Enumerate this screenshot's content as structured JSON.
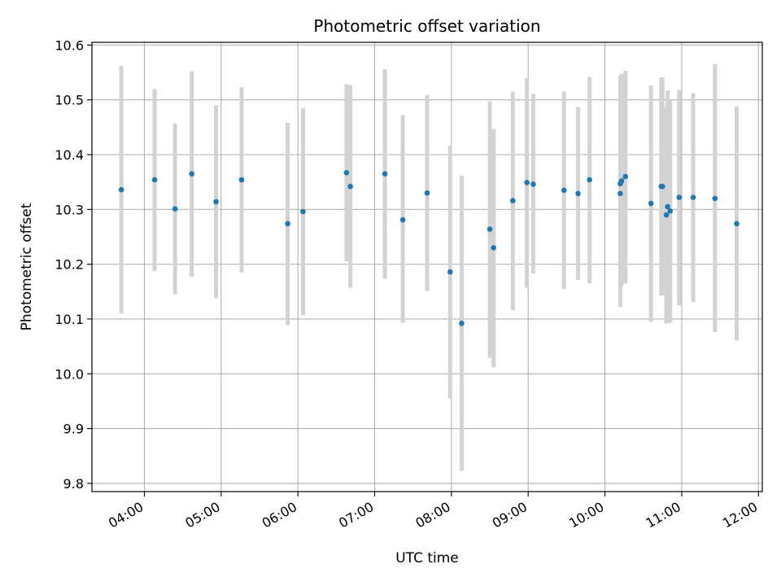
{
  "chart_data": {
    "type": "scatter",
    "title": "Photometric offset variation",
    "xlabel": "UTC time",
    "ylabel": "Photometric offset",
    "x_unit": "hours (UTC)",
    "xlim": [
      "03:19",
      "12:03"
    ],
    "ylim": [
      9.785,
      10.605
    ],
    "grid": true,
    "x_ticks": [
      "04:00",
      "05:00",
      "06:00",
      "07:00",
      "08:00",
      "09:00",
      "10:00",
      "11:00",
      "12:00"
    ],
    "y_ticks": [
      "9.8",
      "9.9",
      "10.0",
      "10.1",
      "10.2",
      "10.3",
      "10.4",
      "10.5",
      "10.6"
    ],
    "colors": {
      "point": "#1f77b4",
      "errorbar": "#d3d3d3",
      "grid": "#b0b0b0"
    },
    "series": [
      {
        "points": [
          {
            "x": "03:42",
            "y": 10.336,
            "ylo": 10.11,
            "yhi": 10.562
          },
          {
            "x": "04:08",
            "y": 10.354,
            "ylo": 10.187,
            "yhi": 10.52
          },
          {
            "x": "04:24",
            "y": 10.301,
            "ylo": 10.145,
            "yhi": 10.457
          },
          {
            "x": "04:37",
            "y": 10.365,
            "ylo": 10.177,
            "yhi": 10.552
          },
          {
            "x": "04:56",
            "y": 10.314,
            "ylo": 10.138,
            "yhi": 10.49
          },
          {
            "x": "05:16",
            "y": 10.354,
            "ylo": 10.185,
            "yhi": 10.523
          },
          {
            "x": "05:52",
            "y": 10.274,
            "ylo": 10.089,
            "yhi": 10.458
          },
          {
            "x": "06:04",
            "y": 10.296,
            "ylo": 10.107,
            "yhi": 10.485
          },
          {
            "x": "06:38",
            "y": 10.367,
            "ylo": 10.205,
            "yhi": 10.529
          },
          {
            "x": "06:41",
            "y": 10.342,
            "ylo": 10.157,
            "yhi": 10.527
          },
          {
            "x": "07:08",
            "y": 10.365,
            "ylo": 10.173,
            "yhi": 10.556
          },
          {
            "x": "07:22",
            "y": 10.281,
            "ylo": 10.093,
            "yhi": 10.472
          },
          {
            "x": "07:41",
            "y": 10.33,
            "ylo": 10.151,
            "yhi": 10.509
          },
          {
            "x": "07:59",
            "y": 10.186,
            "ylo": 9.955,
            "yhi": 10.416
          },
          {
            "x": "08:08",
            "y": 10.092,
            "ylo": 9.823,
            "yhi": 10.362
          },
          {
            "x": "08:30",
            "y": 10.264,
            "ylo": 10.029,
            "yhi": 10.497
          },
          {
            "x": "08:33",
            "y": 10.23,
            "ylo": 10.012,
            "yhi": 10.447
          },
          {
            "x": "08:48",
            "y": 10.316,
            "ylo": 10.116,
            "yhi": 10.515
          },
          {
            "x": "08:59",
            "y": 10.349,
            "ylo": 10.157,
            "yhi": 10.54
          },
          {
            "x": "09:04",
            "y": 10.346,
            "ylo": 10.183,
            "yhi": 10.511
          },
          {
            "x": "09:28",
            "y": 10.335,
            "ylo": 10.155,
            "yhi": 10.515
          },
          {
            "x": "09:39",
            "y": 10.329,
            "ylo": 10.171,
            "yhi": 10.487
          },
          {
            "x": "09:48",
            "y": 10.354,
            "ylo": 10.165,
            "yhi": 10.542
          },
          {
            "x": "10:12",
            "y": 10.347,
            "ylo": 10.153,
            "yhi": 10.545
          },
          {
            "x": "10:12",
            "y": 10.329,
            "ylo": 10.122,
            "yhi": 10.537
          },
          {
            "x": "10:13",
            "y": 10.352,
            "ylo": 10.161,
            "yhi": 10.547
          },
          {
            "x": "10:16",
            "y": 10.36,
            "ylo": 10.165,
            "yhi": 10.553
          },
          {
            "x": "10:36",
            "y": 10.311,
            "ylo": 10.095,
            "yhi": 10.526
          },
          {
            "x": "10:44",
            "y": 10.342,
            "ylo": 10.143,
            "yhi": 10.541
          },
          {
            "x": "10:45",
            "y": 10.342,
            "ylo": 10.143,
            "yhi": 10.541
          },
          {
            "x": "10:48",
            "y": 10.29,
            "ylo": 10.092,
            "yhi": 10.487
          },
          {
            "x": "10:49",
            "y": 10.305,
            "ylo": 10.092,
            "yhi": 10.517
          },
          {
            "x": "10:51",
            "y": 10.297,
            "ylo": 10.093,
            "yhi": 10.5
          },
          {
            "x": "10:58",
            "y": 10.322,
            "ylo": 10.125,
            "yhi": 10.518
          },
          {
            "x": "11:09",
            "y": 10.322,
            "ylo": 10.131,
            "yhi": 10.512
          },
          {
            "x": "11:26",
            "y": 10.32,
            "ylo": 10.076,
            "yhi": 10.565
          },
          {
            "x": "11:43",
            "y": 10.274,
            "ylo": 10.061,
            "yhi": 10.488
          }
        ]
      }
    ]
  }
}
